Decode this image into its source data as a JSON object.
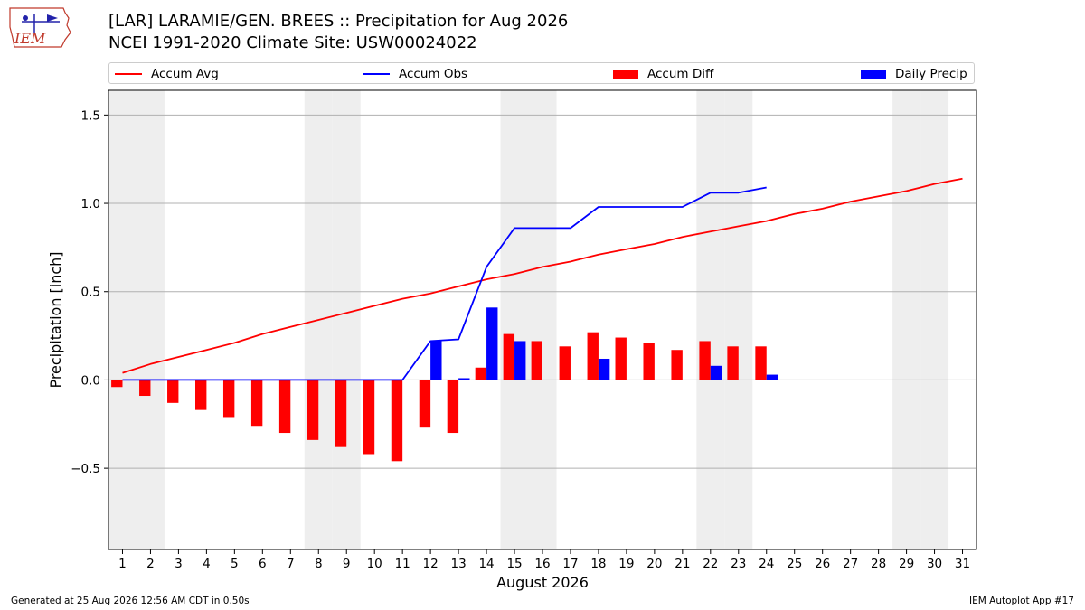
{
  "header": {
    "title_line1": "[LAR] LARAMIE/GEN. BREES :: Precipitation for Aug 2026",
    "title_line2": "NCEI 1991-2020 Climate Site: USW00024022",
    "logo_text": "IEM"
  },
  "footer": {
    "generated": "Generated at 25 Aug 2026 12:56 AM CDT in 0.50s",
    "app": "IEM Autoplot App #17"
  },
  "legend": {
    "items": [
      {
        "label": "Accum Avg",
        "kind": "line",
        "color": "#ff0000"
      },
      {
        "label": "Accum Obs",
        "kind": "line",
        "color": "#0000ff"
      },
      {
        "label": "Accum Diff",
        "kind": "box",
        "color": "#ff0000"
      },
      {
        "label": "Daily Precip",
        "kind": "box",
        "color": "#0000ff"
      }
    ]
  },
  "chart_data": {
    "type": "bar",
    "xlabel": "August 2026",
    "ylabel": "Precipitation [inch]",
    "ylim": [
      -0.96,
      1.64
    ],
    "yticks": [
      -0.5,
      0.0,
      0.5,
      1.0,
      1.5
    ],
    "ytick_labels": [
      "−0.5",
      "0.0",
      "0.5",
      "1.0",
      "1.5"
    ],
    "xlim": [
      0.5,
      31.5
    ],
    "days": [
      1,
      2,
      3,
      4,
      5,
      6,
      7,
      8,
      9,
      10,
      11,
      12,
      13,
      14,
      15,
      16,
      17,
      18,
      19,
      20,
      21,
      22,
      23,
      24,
      25,
      26,
      27,
      28,
      29,
      30,
      31
    ],
    "weekend_days": [
      1,
      2,
      8,
      9,
      15,
      16,
      22,
      23,
      29,
      30
    ],
    "grid": "y",
    "series": [
      {
        "name": "Accum Avg",
        "type": "line",
        "color": "#ff0000",
        "x": [
          1,
          2,
          3,
          4,
          5,
          6,
          7,
          8,
          9,
          10,
          11,
          12,
          13,
          14,
          15,
          16,
          17,
          18,
          19,
          20,
          21,
          22,
          23,
          24,
          25,
          26,
          27,
          28,
          29,
          30,
          31
        ],
        "values": [
          0.04,
          0.09,
          0.13,
          0.17,
          0.21,
          0.26,
          0.3,
          0.34,
          0.38,
          0.42,
          0.46,
          0.49,
          0.53,
          0.57,
          0.6,
          0.64,
          0.67,
          0.71,
          0.74,
          0.77,
          0.81,
          0.84,
          0.87,
          0.9,
          0.94,
          0.97,
          1.01,
          1.04,
          1.07,
          1.11,
          1.14
        ]
      },
      {
        "name": "Accum Obs",
        "type": "line",
        "color": "#0000ff",
        "x": [
          1,
          2,
          3,
          4,
          5,
          6,
          7,
          8,
          9,
          10,
          11,
          12,
          13,
          14,
          15,
          16,
          17,
          18,
          19,
          20,
          21,
          22,
          23,
          24
        ],
        "values": [
          0.0,
          0.0,
          0.0,
          0.0,
          0.0,
          0.0,
          0.0,
          0.0,
          0.0,
          0.0,
          0.0,
          0.22,
          0.23,
          0.64,
          0.86,
          0.86,
          0.86,
          0.98,
          0.98,
          0.98,
          0.98,
          1.06,
          1.06,
          1.09
        ]
      },
      {
        "name": "Accum Diff",
        "type": "bar",
        "color": "#ff0000",
        "x": [
          1,
          2,
          3,
          4,
          5,
          6,
          7,
          8,
          9,
          10,
          11,
          12,
          13,
          14,
          15,
          16,
          17,
          18,
          19,
          20,
          21,
          22,
          23,
          24
        ],
        "values": [
          -0.04,
          -0.09,
          -0.13,
          -0.17,
          -0.21,
          -0.26,
          -0.3,
          -0.34,
          -0.38,
          -0.42,
          -0.46,
          -0.27,
          -0.3,
          0.07,
          0.26,
          0.22,
          0.19,
          0.27,
          0.24,
          0.21,
          0.17,
          0.22,
          0.19,
          0.19
        ]
      },
      {
        "name": "Daily Precip",
        "type": "bar",
        "color": "#0000ff",
        "x": [
          1,
          2,
          3,
          4,
          5,
          6,
          7,
          8,
          9,
          10,
          11,
          12,
          13,
          14,
          15,
          16,
          17,
          18,
          19,
          20,
          21,
          22,
          23,
          24
        ],
        "values": [
          0,
          0,
          0,
          0,
          0,
          0,
          0,
          0,
          0,
          0,
          0,
          0.22,
          0.01,
          0.41,
          0.22,
          0,
          0,
          0.12,
          0,
          0,
          0,
          0.08,
          0,
          0.03
        ]
      }
    ]
  }
}
